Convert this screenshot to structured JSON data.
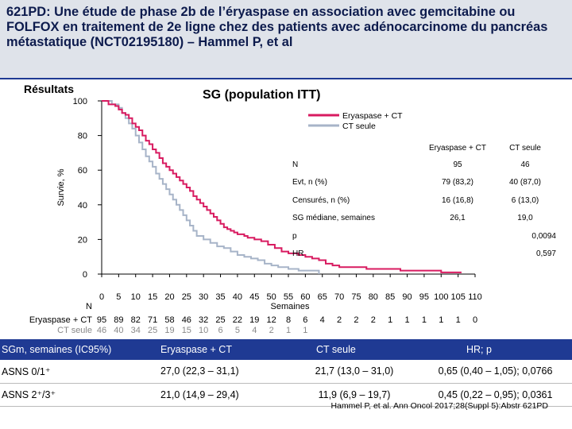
{
  "header": {
    "title": "621PD: Une étude de phase 2b de l’éryaspase en association avec gemcitabine ou FOLFOX en traitement de 2e ligne chez des patients avec adénocarcinome du pancréas métastatique (NCT02195180) – Hammel P, et al"
  },
  "section_label": "Résultats",
  "colors": {
    "header_bg": "#dfe3ea",
    "accent": "#1f3a93",
    "series_eryaspase": "#d81b60",
    "series_ct": "#a7b4c8"
  },
  "chart_data": {
    "type": "line",
    "title": "SG (population ITT)",
    "ylabel": "Survie, %",
    "xlabel": "Semaines",
    "xlim": [
      0,
      110
    ],
    "ylim": [
      0,
      100
    ],
    "y_ticks": [
      "0",
      "20",
      "40",
      "60",
      "80",
      "100"
    ],
    "y_tick_values": [
      0,
      20,
      40,
      60,
      80,
      100
    ],
    "x_ticks": [
      "0",
      "5",
      "10",
      "15",
      "20",
      "25",
      "30",
      "35",
      "40",
      "45",
      "50",
      "55",
      "60",
      "65",
      "70",
      "75",
      "80",
      "85",
      "90",
      "95",
      "100",
      "105",
      "110"
    ],
    "x_tick_values": [
      0,
      5,
      10,
      15,
      20,
      25,
      30,
      35,
      40,
      45,
      50,
      55,
      60,
      65,
      70,
      75,
      80,
      85,
      90,
      95,
      100,
      105,
      110
    ],
    "legend_position": "top-right",
    "series": [
      {
        "name": "Eryaspase + CT",
        "points": [
          [
            0,
            100
          ],
          [
            2,
            100
          ],
          [
            2,
            98
          ],
          [
            4,
            97
          ],
          [
            5,
            95
          ],
          [
            6,
            93
          ],
          [
            7,
            92
          ],
          [
            8,
            90
          ],
          [
            9,
            87
          ],
          [
            10,
            85
          ],
          [
            11,
            83
          ],
          [
            12,
            80
          ],
          [
            13,
            77
          ],
          [
            14,
            75
          ],
          [
            15,
            72
          ],
          [
            16,
            70
          ],
          [
            17,
            67
          ],
          [
            18,
            64
          ],
          [
            19,
            62
          ],
          [
            20,
            60
          ],
          [
            21,
            58
          ],
          [
            22,
            56
          ],
          [
            23,
            54
          ],
          [
            24,
            52
          ],
          [
            25,
            50
          ],
          [
            26,
            48
          ],
          [
            27,
            45
          ],
          [
            28,
            43
          ],
          [
            29,
            41
          ],
          [
            30,
            39
          ],
          [
            31,
            37
          ],
          [
            32,
            35
          ],
          [
            33,
            33
          ],
          [
            34,
            31
          ],
          [
            35,
            29
          ],
          [
            36,
            27
          ],
          [
            37,
            26
          ],
          [
            38,
            25
          ],
          [
            39,
            24
          ],
          [
            40,
            23
          ],
          [
            42,
            22
          ],
          [
            43,
            21
          ],
          [
            45,
            20
          ],
          [
            47,
            19
          ],
          [
            49,
            17
          ],
          [
            51,
            15
          ],
          [
            53,
            13
          ],
          [
            55,
            12
          ],
          [
            58,
            11
          ],
          [
            60,
            10
          ],
          [
            62,
            9
          ],
          [
            64,
            8
          ],
          [
            66,
            6
          ],
          [
            68,
            5
          ],
          [
            70,
            4
          ],
          [
            75,
            4
          ],
          [
            78,
            3
          ],
          [
            85,
            3
          ],
          [
            88,
            2
          ],
          [
            95,
            2
          ],
          [
            100,
            1
          ],
          [
            106,
            1
          ]
        ]
      },
      {
        "name": "CT seule",
        "points": [
          [
            0,
            100
          ],
          [
            3,
            98
          ],
          [
            5,
            96
          ],
          [
            6,
            93
          ],
          [
            7,
            90
          ],
          [
            8,
            87
          ],
          [
            9,
            84
          ],
          [
            10,
            80
          ],
          [
            11,
            76
          ],
          [
            12,
            72
          ],
          [
            13,
            68
          ],
          [
            14,
            65
          ],
          [
            15,
            62
          ],
          [
            16,
            58
          ],
          [
            17,
            55
          ],
          [
            18,
            52
          ],
          [
            19,
            49
          ],
          [
            20,
            46
          ],
          [
            21,
            43
          ],
          [
            22,
            40
          ],
          [
            23,
            37
          ],
          [
            24,
            34
          ],
          [
            25,
            31
          ],
          [
            26,
            28
          ],
          [
            27,
            25
          ],
          [
            28,
            22
          ],
          [
            30,
            20
          ],
          [
            32,
            18
          ],
          [
            34,
            16
          ],
          [
            36,
            15
          ],
          [
            38,
            13
          ],
          [
            40,
            11
          ],
          [
            42,
            10
          ],
          [
            44,
            9
          ],
          [
            46,
            8
          ],
          [
            48,
            6
          ],
          [
            50,
            5
          ],
          [
            52,
            4
          ],
          [
            55,
            3
          ],
          [
            58,
            2
          ],
          [
            62,
            2
          ],
          [
            64,
            0
          ]
        ]
      }
    ],
    "risk_table": {
      "n_label": "N",
      "rows": [
        {
          "label": "Eryaspase + CT",
          "values": [
            "95",
            "89",
            "82",
            "71",
            "58",
            "46",
            "32",
            "25",
            "22",
            "19",
            "12",
            "8",
            "6",
            "4",
            "2",
            "2",
            "2",
            "1",
            "1",
            "1",
            "1",
            "1",
            "0"
          ]
        },
        {
          "label": "CT seule",
          "values": [
            "46",
            "40",
            "34",
            "25",
            "19",
            "15",
            "10",
            "6",
            "5",
            "4",
            "2",
            "1",
            "1"
          ]
        }
      ]
    },
    "stats_table": {
      "columns": [
        "",
        "Eryaspase + CT",
        "CT seule"
      ],
      "rows": [
        [
          "N",
          "95",
          "46"
        ],
        [
          "Evt, n (%)",
          "79 (83,2)",
          "40 (87,0)"
        ],
        [
          "Censurés, n (%)",
          "16 (16,8)",
          "6 (13,0)"
        ],
        [
          "SG médiane, semaines",
          "26,1",
          "19,0"
        ]
      ],
      "p_label": "p",
      "p_value": "0,0094",
      "hr_label": "HR",
      "hr_value": "0,597"
    }
  },
  "summary_table": {
    "headers": [
      "SGm, semaines (IC95%)",
      "Eryaspase + CT",
      "CT seule",
      "HR; p"
    ],
    "rows": [
      [
        "ASNS 0/1⁺",
        "27,0 (22,3 – 31,1)",
        "21,7 (13,0 – 31,0)",
        "0,65 (0,40 – 1,05); 0,0766"
      ],
      [
        "ASNS 2⁺/3⁺",
        "21,0 (14,9 – 29,4)",
        "11,9 (6,9 – 19,7)",
        "0,45 (0,22 – 0,95); 0,0361"
      ]
    ]
  },
  "reference": "Hammel P, et al. Ann Oncol 2017;28(Suppl 5):Abstr 621PD"
}
